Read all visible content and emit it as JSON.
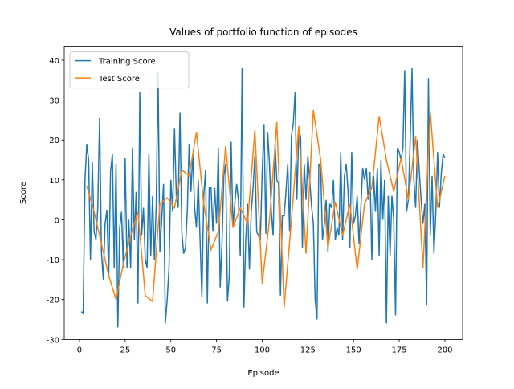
{
  "chart_data": {
    "type": "line",
    "title": "Values of portfolio function of episodes",
    "x_label": "Episode",
    "y_label": "Score",
    "legend": "upper left",
    "xlim": [
      -8.35,
      209.7
    ],
    "ylim": [
      -30.02,
      43.5
    ],
    "xticks": [
      0,
      25,
      50,
      75,
      100,
      125,
      150,
      175,
      200
    ],
    "yticks": [
      -30,
      -20,
      -10,
      0,
      10,
      20,
      30,
      40
    ],
    "series": [
      {
        "name": "Training Score",
        "color": "#1f77b4",
        "x": [
          1,
          2,
          3,
          4,
          5,
          6,
          7,
          8,
          9,
          10,
          11,
          12,
          13,
          14,
          15,
          16,
          17,
          18,
          19,
          20,
          21,
          22,
          23,
          24,
          25,
          26,
          27,
          28,
          29,
          30,
          31,
          32,
          33,
          34,
          35,
          36,
          37,
          38,
          39,
          40,
          41,
          42,
          43,
          44,
          45,
          46,
          47,
          48,
          49,
          50,
          51,
          52,
          53,
          54,
          55,
          56,
          57,
          58,
          59,
          60,
          61,
          62,
          63,
          64,
          65,
          66,
          67,
          68,
          69,
          70,
          71,
          72,
          73,
          74,
          75,
          76,
          77,
          78,
          79,
          80,
          81,
          82,
          83,
          84,
          85,
          86,
          87,
          88,
          89,
          90,
          91,
          92,
          93,
          94,
          95,
          96,
          97,
          98,
          99,
          100,
          101,
          102,
          103,
          104,
          105,
          106,
          107,
          108,
          109,
          110,
          111,
          112,
          113,
          114,
          115,
          116,
          117,
          118,
          119,
          120,
          121,
          122,
          123,
          124,
          125,
          126,
          127,
          128,
          129,
          130,
          131,
          132,
          133,
          134,
          135,
          136,
          137,
          138,
          139,
          140,
          141,
          142,
          143,
          144,
          145,
          146,
          147,
          148,
          149,
          150,
          151,
          152,
          153,
          154,
          155,
          156,
          157,
          158,
          159,
          160,
          161,
          162,
          163,
          164,
          165,
          166,
          167,
          168,
          169,
          170,
          171,
          172,
          173,
          174,
          175,
          176,
          177,
          178,
          179,
          180,
          181,
          182,
          183,
          184,
          185,
          186,
          187,
          188,
          189,
          190,
          191,
          192,
          193,
          194,
          195,
          196,
          197,
          198,
          199,
          200
        ],
        "values": [
          -23,
          -23.5,
          10,
          19,
          15,
          -10,
          14.5,
          -3,
          -5,
          3,
          25.5,
          -8,
          -15,
          -1,
          2.5,
          -14,
          12,
          16.5,
          -12,
          14,
          -27,
          -2,
          2,
          -12,
          15.5,
          -12,
          0,
          -12,
          18,
          -5,
          7,
          -21,
          32,
          -4,
          3,
          -10,
          -12,
          16.5,
          -9,
          6,
          -10,
          4,
          37,
          -8,
          0,
          9,
          -26,
          -20,
          -12,
          10,
          2,
          23,
          6,
          3,
          27,
          -3,
          -8.5,
          -7,
          2,
          19,
          7,
          16.5,
          3,
          -2,
          10,
          -5,
          -19.5,
          6,
          12.5,
          -21,
          8,
          8,
          -3,
          8,
          -1,
          18,
          -17,
          -6,
          11,
          14,
          -20.5,
          -14,
          19.5,
          -2,
          4,
          9,
          5,
          -9,
          38,
          -22,
          -5,
          4,
          -12.5,
          2,
          8,
          16,
          -3,
          -4,
          -5,
          12,
          24,
          -3.5,
          22,
          14,
          2,
          -4,
          19,
          10,
          9,
          -19,
          1,
          1,
          7,
          14,
          -3,
          21,
          24,
          32,
          5,
          22,
          21,
          -7,
          14,
          5,
          16,
          10,
          3.5,
          -1,
          -20,
          -25,
          14,
          13,
          -5,
          -1,
          5,
          -8,
          4,
          3,
          10,
          -5,
          -2,
          -4,
          17,
          -5,
          11,
          14,
          7,
          -7,
          17,
          -1,
          1,
          6,
          -6,
          3,
          13,
          10,
          13,
          5,
          12,
          -10,
          11,
          2,
          13,
          -9,
          15,
          0,
          10,
          -26,
          6,
          -9,
          6,
          0,
          -24,
          18,
          17,
          15,
          18,
          37.5,
          2,
          5,
          20,
          38,
          10,
          3,
          20,
          12,
          5,
          -1,
          4,
          -21.5,
          35.5,
          -4,
          11,
          -8.5,
          1.5,
          17,
          3,
          11.5,
          16.5,
          15.5
        ]
      },
      {
        "name": "Test Score",
        "color": "#ff7f0e",
        "x": [
          4,
          8,
          12,
          16,
          20,
          24,
          28,
          32,
          36,
          40,
          44,
          48,
          52,
          56,
          60,
          64,
          68,
          72,
          76,
          80,
          84,
          88,
          92,
          96,
          100,
          104,
          108,
          112,
          116,
          120,
          124,
          128,
          132,
          136,
          140,
          144,
          148,
          152,
          156,
          160,
          164,
          168,
          172,
          176,
          180,
          184,
          188,
          192,
          196,
          200
        ],
        "values": [
          8.5,
          2,
          -6,
          -14,
          -20,
          -11,
          -4,
          2,
          -19,
          -20.5,
          4,
          5.5,
          3,
          12.5,
          11,
          22,
          4,
          -7.5,
          -3,
          18.5,
          -2,
          3,
          -1,
          22.5,
          -16,
          0,
          24.5,
          -22,
          0,
          23.5,
          -8.5,
          27.5,
          15,
          -7,
          4.5,
          -4,
          4,
          -12.5,
          4,
          8,
          26,
          15,
          7,
          15.5,
          5,
          21,
          -12,
          27,
          3,
          11
        ]
      }
    ]
  }
}
